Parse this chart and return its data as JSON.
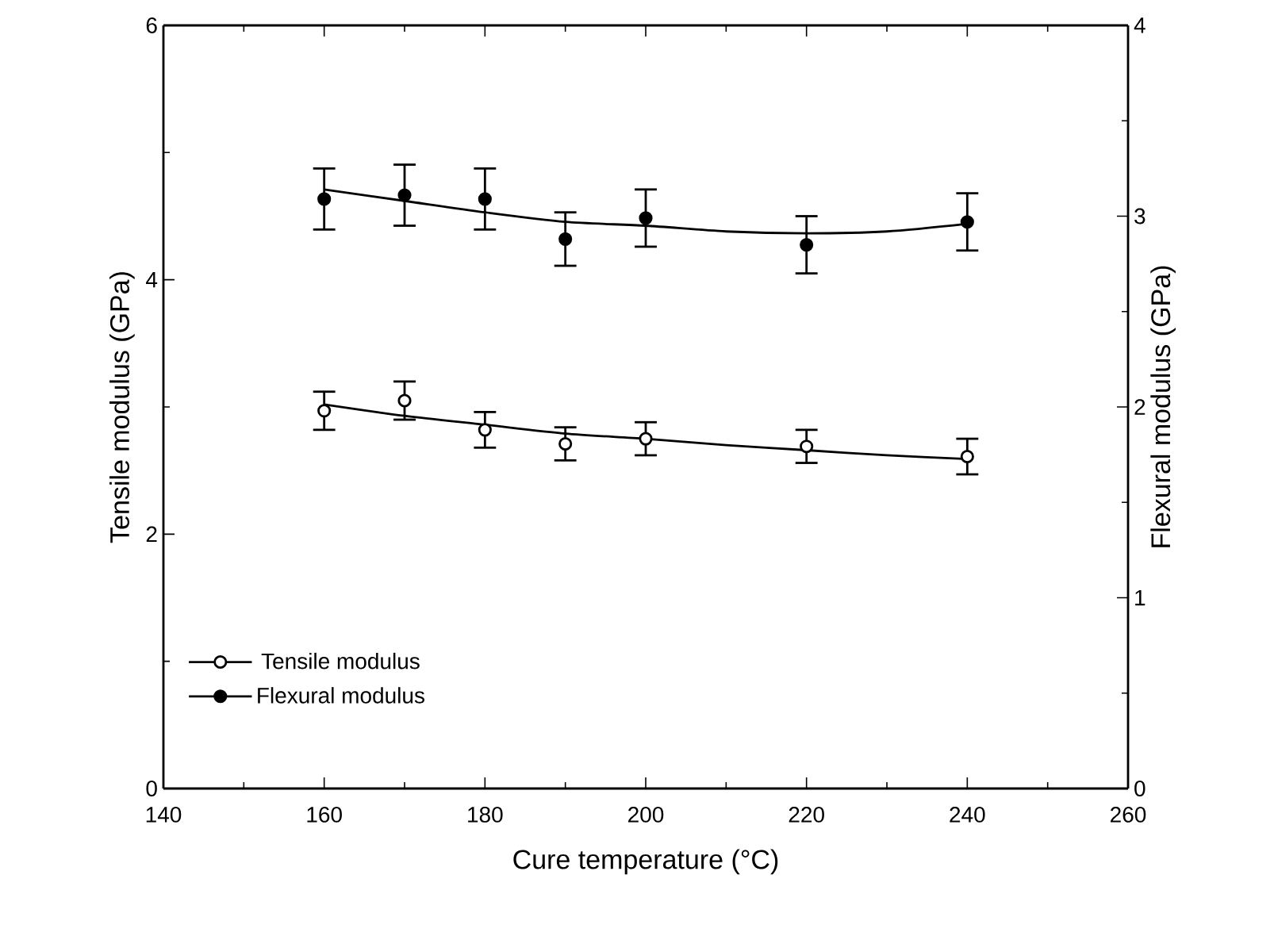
{
  "chart_data": {
    "type": "scatter",
    "xlabel": "Cure temperature (°C)",
    "ylabel": "Tensile modulus (GPa)",
    "y2label": "Flexural modulus (GPa)",
    "xlim": [
      140,
      260
    ],
    "xticks": [
      140,
      160,
      180,
      200,
      220,
      240,
      260
    ],
    "ylim": [
      0,
      6
    ],
    "yticks": [
      0,
      2,
      4,
      6
    ],
    "y2lim": [
      0,
      4
    ],
    "y2ticks": [
      0,
      1,
      2,
      3,
      4
    ],
    "legend": "bottom left",
    "grid": false,
    "series": [
      {
        "name": "Tensile modulus",
        "marker": "circle_open",
        "color": "#000000",
        "axis": "y",
        "x": [
          160,
          170,
          180,
          190,
          200,
          220,
          240
        ],
        "values": [
          2.97,
          3.05,
          2.82,
          2.71,
          2.75,
          2.69,
          2.61
        ],
        "errors": [
          0.15,
          0.15,
          0.14,
          0.13,
          0.13,
          0.13,
          0.14
        ]
      },
      {
        "name": "Flexural modulus",
        "marker": "circle",
        "color": "#000000",
        "axis": "y2",
        "x": [
          160,
          170,
          180,
          190,
          200,
          220,
          240
        ],
        "values": [
          3.09,
          3.11,
          3.09,
          2.88,
          2.99,
          2.85,
          2.97
        ],
        "errors": [
          0.16,
          0.16,
          0.16,
          0.14,
          0.15,
          0.15,
          0.15
        ]
      },
      {
        "type": "line",
        "marker": "none",
        "color": "#000000",
        "axis": "y",
        "x": [
          160,
          170,
          180,
          190,
          200,
          210,
          220,
          230,
          240
        ],
        "values": [
          3.02,
          2.93,
          2.86,
          2.79,
          2.75,
          2.7,
          2.66,
          2.62,
          2.59
        ]
      },
      {
        "type": "line",
        "marker": "none",
        "color": "#000000",
        "axis": "y2",
        "x": [
          160,
          170,
          180,
          190,
          200,
          210,
          220,
          230,
          240
        ],
        "values": [
          3.14,
          3.08,
          3.02,
          2.97,
          2.95,
          2.92,
          2.91,
          2.92,
          2.96
        ]
      }
    ]
  }
}
